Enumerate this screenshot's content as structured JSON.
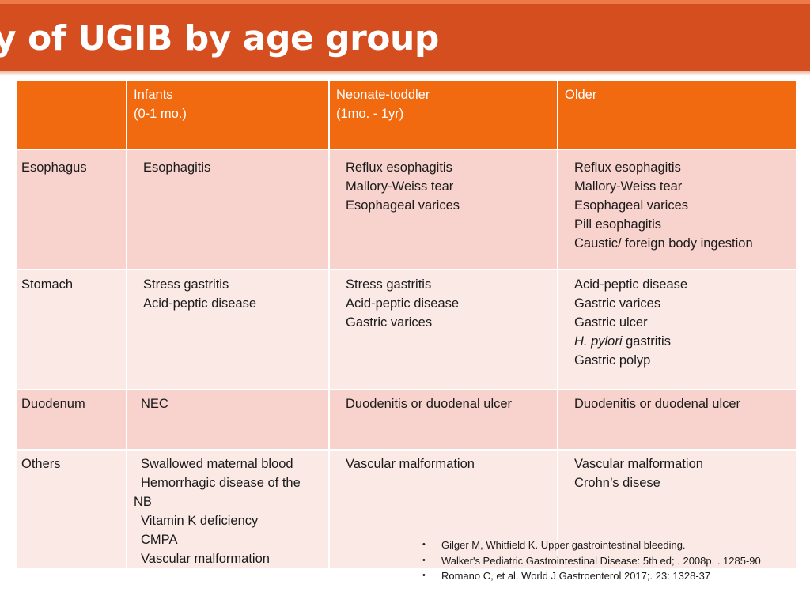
{
  "slide": {
    "title": "y of UGIB by age group"
  },
  "table": {
    "headers": [
      "",
      "Infants\n(0-1 mo.)",
      "Neonate-toddler\n(1mo. -  1yr)",
      "Older"
    ],
    "rows": [
      {
        "site": "Esophagus",
        "infants": [
          "Esophagitis"
        ],
        "neonate_toddler": [
          "Reflux esophagitis",
          "Mallory-Weiss tear",
          "Esophageal varices"
        ],
        "older": [
          "Reflux esophagitis",
          "Mallory-Weiss tear",
          "Esophageal varices",
          "Pill esophagitis",
          "Caustic/ foreign body ingestion"
        ]
      },
      {
        "site": "Stomach",
        "infants": [
          "Stress gastritis",
          "Acid-peptic disease"
        ],
        "neonate_toddler": [
          "Stress gastritis",
          "Acid-peptic disease",
          "Gastric varices"
        ],
        "older": [
          "Acid-peptic disease",
          "Gastric varices",
          "Gastric ulcer",
          "H. pylori",
          " gastritis",
          "Gastric polyp"
        ]
      },
      {
        "site": "Duodenum",
        "infants": [
          "NEC"
        ],
        "neonate_toddler": [
          "Duodenitis or duodenal ulcer"
        ],
        "older": [
          "Duodenitis or duodenal ulcer"
        ]
      },
      {
        "site": "Others",
        "infants": [
          "Swallowed maternal blood",
          "Hemorrhagic disease of the",
          "NB",
          "Vitamin K deficiency",
          "CMPA",
          "Vascular malformation"
        ],
        "neonate_toddler": [
          "Vascular malformation"
        ],
        "older": [
          "Vascular malformation",
          "Crohn’s disese"
        ]
      }
    ]
  },
  "references": [
    "Gilger M, Whitfield K. Upper gastrointestinal bleeding.",
    "Walker's Pediatric Gastrointestinal Disease: 5th ed;  . 2008p. . 1285-90",
    " Romano C, et al. World J Gastroenterol 2017;. 23: 1328-37"
  ],
  "bullet_char": "•",
  "colors": {
    "title_bar": "#d44e1f",
    "header_row": "#f26a10",
    "row_dark": "#f8d2cc",
    "row_light": "#fbe9e6"
  }
}
